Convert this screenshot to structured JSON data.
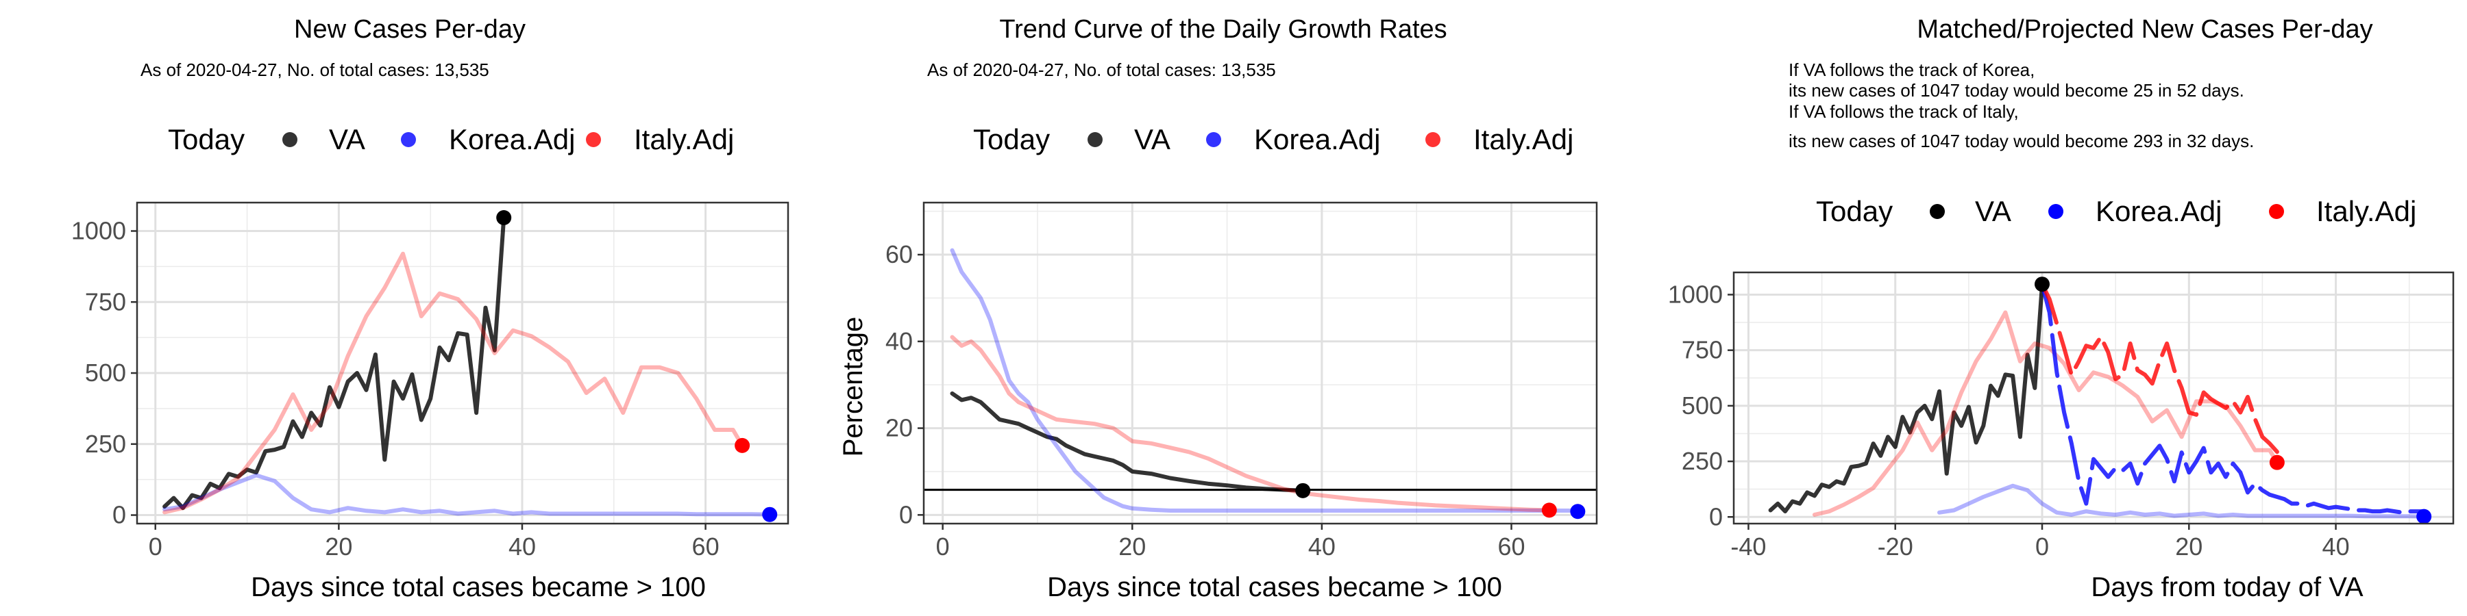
{
  "chart_data": [
    {
      "type": "line",
      "title": "New Cases Per-day",
      "subtitle": [
        "As of 2020-04-27, No. of total cases: 13,535"
      ],
      "legend": {
        "title": "Today",
        "placement": "top",
        "entries": [
          "VA",
          "Korea.Adj",
          "Italy.Adj"
        ]
      },
      "xlabel": "Days since total cases became > 100",
      "ylabel": "",
      "xlim": [
        -2,
        69
      ],
      "ylim": [
        -30,
        1100
      ],
      "xticks": [
        0,
        20,
        40,
        60
      ],
      "yticks": [
        0,
        250,
        500,
        750,
        1000
      ],
      "grid": true,
      "colors": {
        "VA": "#000000",
        "Korea.Adj": "#0000ff",
        "Italy.Adj": "#ff0000"
      },
      "series": [
        {
          "name": "VA",
          "opacity": 0.8,
          "x": [
            1,
            2,
            3,
            4,
            5,
            6,
            7,
            8,
            9,
            10,
            11,
            12,
            13,
            14,
            15,
            16,
            17,
            18,
            19,
            20,
            21,
            22,
            23,
            24,
            25,
            26,
            27,
            28,
            29,
            30,
            31,
            32,
            33,
            34,
            35,
            36,
            37,
            38
          ],
          "y": [
            30,
            60,
            25,
            70,
            60,
            110,
            95,
            145,
            135,
            160,
            150,
            225,
            230,
            240,
            330,
            275,
            360,
            315,
            450,
            380,
            470,
            500,
            440,
            565,
            195,
            470,
            410,
            495,
            335,
            410,
            590,
            545,
            640,
            635,
            360,
            730,
            580,
            1045
          ]
        },
        {
          "name": "Korea.Adj",
          "opacity": 0.3,
          "x": [
            1,
            3,
            5,
            7,
            9,
            11,
            13,
            15,
            17,
            19,
            21,
            23,
            25,
            27,
            29,
            31,
            33,
            35,
            37,
            39,
            41,
            43,
            45,
            47,
            49,
            51,
            53,
            55,
            57,
            59,
            61,
            63,
            65,
            67
          ],
          "y": [
            20,
            30,
            60,
            90,
            115,
            140,
            120,
            60,
            20,
            10,
            25,
            15,
            10,
            20,
            10,
            15,
            5,
            10,
            15,
            5,
            10,
            5,
            5,
            5,
            5,
            5,
            5,
            5,
            5,
            3,
            3,
            3,
            3,
            2
          ]
        },
        {
          "name": "Italy.Adj",
          "opacity": 0.3,
          "x": [
            1,
            3,
            5,
            7,
            9,
            11,
            13,
            15,
            17,
            19,
            21,
            23,
            25,
            27,
            29,
            31,
            33,
            35,
            37,
            39,
            41,
            43,
            45,
            47,
            49,
            51,
            53,
            55,
            57,
            59,
            61,
            63,
            64
          ],
          "y": [
            10,
            25,
            55,
            90,
            130,
            215,
            300,
            425,
            300,
            390,
            560,
            700,
            800,
            920,
            700,
            780,
            760,
            690,
            570,
            650,
            630,
            590,
            540,
            430,
            480,
            360,
            520,
            520,
            500,
            410,
            300,
            300,
            245
          ]
        }
      ],
      "today_points": [
        {
          "series": "VA",
          "x": 38,
          "y": 1047
        },
        {
          "series": "Korea.Adj",
          "x": 67,
          "y": 2
        },
        {
          "series": "Italy.Adj",
          "x": 64,
          "y": 245
        }
      ]
    },
    {
      "type": "line",
      "title": "Trend Curve of the Daily Growth Rates",
      "subtitle": [
        "As of 2020-04-27, No. of total cases: 13,535"
      ],
      "legend": {
        "title": "Today",
        "placement": "top",
        "entries": [
          "VA",
          "Korea.Adj",
          "Italy.Adj"
        ]
      },
      "xlabel": "Days since total cases became > 100",
      "ylabel": "Percentage",
      "xlim": [
        -2,
        69
      ],
      "ylim": [
        -2,
        72
      ],
      "xticks": [
        0,
        20,
        40,
        60
      ],
      "yticks": [
        0,
        20,
        40,
        60
      ],
      "grid": true,
      "hline": 5.8,
      "colors": {
        "VA": "#000000",
        "Korea.Adj": "#0000ff",
        "Italy.Adj": "#ff0000"
      },
      "series": [
        {
          "name": "VA",
          "opacity": 0.8,
          "x": [
            1,
            2,
            3,
            4,
            5,
            6,
            7,
            8,
            9,
            10,
            11,
            12,
            13,
            14,
            15,
            16,
            17,
            18,
            19,
            20,
            22,
            24,
            26,
            28,
            30,
            32,
            34,
            36,
            38
          ],
          "y": [
            28,
            26.5,
            27,
            26,
            24,
            22,
            21.5,
            21,
            20,
            19,
            18,
            17.5,
            16,
            15,
            14,
            13.5,
            13,
            12.5,
            11.5,
            10,
            9.5,
            8.5,
            7.8,
            7.2,
            6.8,
            6.3,
            6,
            5.8,
            5.6
          ]
        },
        {
          "name": "Korea.Adj",
          "opacity": 0.3,
          "x": [
            1,
            2,
            3,
            4,
            5,
            6,
            7,
            8,
            9,
            10,
            11,
            12,
            13,
            14,
            15,
            16,
            17,
            18,
            19,
            20,
            22,
            24,
            30,
            40,
            50,
            60,
            67
          ],
          "y": [
            61,
            56,
            53,
            50,
            45,
            38,
            31,
            28,
            26,
            22,
            19,
            16,
            13,
            10,
            8,
            6,
            4,
            3,
            2,
            1.5,
            1.2,
            1,
            1,
            1,
            1,
            1,
            1
          ]
        },
        {
          "name": "Italy.Adj",
          "opacity": 0.3,
          "x": [
            1,
            2,
            3,
            4,
            5,
            6,
            7,
            8,
            9,
            10,
            11,
            12,
            14,
            16,
            18,
            20,
            22,
            24,
            26,
            28,
            30,
            32,
            34,
            36,
            38,
            40,
            42,
            44,
            46,
            48,
            50,
            52,
            54,
            56,
            58,
            60,
            62,
            64
          ],
          "y": [
            41,
            39,
            40,
            38,
            35,
            32,
            28,
            26,
            25,
            24,
            23,
            22,
            21.5,
            21,
            20,
            17,
            16.5,
            15.5,
            14.5,
            13,
            11,
            9,
            7.5,
            6,
            5,
            4.5,
            4,
            3.5,
            3.2,
            2.8,
            2.5,
            2.2,
            2,
            1.8,
            1.6,
            1.4,
            1.2,
            1.1
          ]
        }
      ],
      "today_points": [
        {
          "series": "VA",
          "x": 38,
          "y": 5.6
        },
        {
          "series": "Korea.Adj",
          "x": 67,
          "y": 0.8
        },
        {
          "series": "Italy.Adj",
          "x": 64,
          "y": 1.1
        }
      ]
    },
    {
      "type": "line",
      "title": "Matched/Projected New Cases Per-day",
      "subtitle": [
        "If VA follows the track of Korea,",
        "its new cases of 1047 today would become 25 in 52 days.",
        "If VA follows the track of Italy,",
        "its new cases of 1047 today would become 293 in 32 days."
      ],
      "legend": {
        "title": "Today",
        "placement": "top",
        "entries": [
          "VA",
          "Korea.Adj",
          "Italy.Adj"
        ]
      },
      "xlabel": "Days from today of VA",
      "ylabel": "",
      "xlim": [
        -42,
        56
      ],
      "ylim": [
        -30,
        1100
      ],
      "xticks": [
        -40,
        -20,
        0,
        20,
        40
      ],
      "yticks": [
        0,
        250,
        500,
        750,
        1000
      ],
      "grid": true,
      "colors": {
        "VA": "#000000",
        "Korea.Adj": "#0000ff",
        "Italy.Adj": "#ff0000"
      },
      "series": [
        {
          "name": "VA",
          "opacity": 0.8,
          "x": [
            -37,
            -36,
            -35,
            -34,
            -33,
            -32,
            -31,
            -30,
            -29,
            -28,
            -27,
            -26,
            -25,
            -24,
            -23,
            -22,
            -21,
            -20,
            -19,
            -18,
            -17,
            -16,
            -15,
            -14,
            -13,
            -12,
            -11,
            -10,
            -9,
            -8,
            -7,
            -6,
            -5,
            -4,
            -3,
            -2,
            -1,
            0
          ],
          "y": [
            30,
            60,
            25,
            70,
            60,
            110,
            95,
            145,
            135,
            160,
            150,
            225,
            230,
            240,
            330,
            275,
            360,
            315,
            450,
            380,
            470,
            500,
            440,
            565,
            195,
            470,
            410,
            495,
            335,
            410,
            590,
            545,
            640,
            635,
            360,
            730,
            580,
            1045
          ]
        },
        {
          "name": "Korea.Adj",
          "opacity": 0.3,
          "x": [
            -14,
            -12,
            -10,
            -8,
            -6,
            -4,
            -2,
            0,
            2,
            4,
            6,
            8,
            10,
            12,
            14,
            16,
            18,
            20,
            22,
            24,
            26,
            28,
            30,
            32,
            34,
            36,
            38,
            40,
            42,
            44,
            46,
            48,
            50,
            52
          ],
          "y": [
            20,
            30,
            60,
            90,
            115,
            140,
            120,
            60,
            20,
            10,
            25,
            15,
            10,
            20,
            10,
            15,
            5,
            10,
            15,
            5,
            10,
            5,
            5,
            5,
            5,
            5,
            5,
            5,
            5,
            3,
            3,
            3,
            3,
            2
          ]
        },
        {
          "name": "Italy.Adj",
          "opacity": 0.3,
          "x": [
            -31,
            -29,
            -27,
            -25,
            -23,
            -21,
            -19,
            -17,
            -15,
            -13,
            -11,
            -9,
            -7,
            -5,
            -3,
            -1,
            1,
            3,
            5,
            7,
            9,
            11,
            13,
            15,
            17,
            19,
            21,
            23,
            25,
            27,
            29,
            31,
            32
          ],
          "y": [
            10,
            25,
            55,
            90,
            130,
            215,
            300,
            425,
            300,
            390,
            560,
            700,
            800,
            920,
            700,
            780,
            760,
            690,
            570,
            650,
            630,
            590,
            540,
            430,
            480,
            360,
            520,
            520,
            500,
            410,
            300,
            300,
            245
          ]
        },
        {
          "name": "Korea.Adj",
          "projected": true,
          "opacity": 0.8,
          "x": [
            0,
            1,
            2,
            3,
            4,
            5,
            6,
            7,
            8,
            9,
            10,
            11,
            12,
            13,
            14,
            15,
            16,
            17,
            18,
            19,
            20,
            21,
            22,
            23,
            24,
            25,
            26,
            27,
            28,
            29,
            30,
            31,
            32,
            33,
            34,
            35,
            36,
            37,
            38,
            39,
            40,
            41,
            42,
            43,
            44,
            45,
            46,
            47,
            48,
            49,
            50,
            51,
            52
          ],
          "y": [
            1047,
            920,
            650,
            470,
            330,
            160,
            60,
            260,
            220,
            180,
            220,
            210,
            240,
            150,
            240,
            280,
            320,
            260,
            160,
            290,
            200,
            250,
            310,
            200,
            240,
            180,
            240,
            200,
            110,
            150,
            120,
            100,
            90,
            80,
            60,
            60,
            50,
            60,
            50,
            40,
            45,
            40,
            35,
            30,
            30,
            25,
            25,
            30,
            25,
            20,
            25,
            25,
            25
          ]
        },
        {
          "name": "Italy.Adj",
          "projected": true,
          "opacity": 0.8,
          "x": [
            0,
            1,
            2,
            3,
            4,
            5,
            6,
            7,
            8,
            9,
            10,
            11,
            12,
            13,
            14,
            15,
            16,
            17,
            18,
            19,
            20,
            21,
            22,
            23,
            24,
            25,
            26,
            27,
            28,
            29,
            30,
            31,
            32
          ],
          "y": [
            1047,
            980,
            870,
            760,
            640,
            700,
            770,
            760,
            810,
            740,
            620,
            640,
            780,
            660,
            640,
            600,
            700,
            780,
            660,
            580,
            470,
            460,
            560,
            530,
            510,
            490,
            520,
            470,
            540,
            440,
            360,
            330,
            293
          ]
        }
      ],
      "today_points": [
        {
          "series": "VA",
          "x": 0,
          "y": 1047
        },
        {
          "series": "Korea.Adj",
          "x": 52,
          "y": 2
        },
        {
          "series": "Italy.Adj",
          "x": 32,
          "y": 245
        }
      ]
    }
  ]
}
